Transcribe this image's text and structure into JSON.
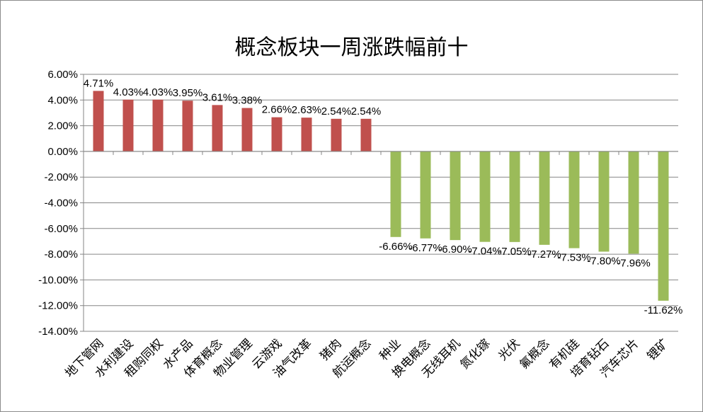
{
  "chart_data": {
    "type": "bar",
    "title": "概念板块一周涨跌幅前十",
    "xlabel": "",
    "ylabel": "",
    "ylim": [
      -14,
      6
    ],
    "ytick_step": 2,
    "ytick_labels": [
      "6.00%",
      "4.00%",
      "2.00%",
      "0.00%",
      "-2.00%",
      "-4.00%",
      "-6.00%",
      "-8.00%",
      "-10.00%",
      "-12.00%",
      "-14.00%"
    ],
    "grid": true,
    "legend": "none",
    "colors": {
      "positive": "#c0504d",
      "negative": "#9bbb59",
      "grid": "#868686",
      "axis": "#868686"
    },
    "categories": [
      "地下管网",
      "水利建设",
      "租购同权",
      "水产品",
      "体育概念",
      "物业管理",
      "云游戏",
      "油气改革",
      "猪肉",
      "航运概念",
      "种业",
      "换电概念",
      "无线耳机",
      "氮化镓",
      "光伏",
      "氟概念",
      "有机硅",
      "培育钻石",
      "汽车芯片",
      "锂矿"
    ],
    "values": [
      4.71,
      4.03,
      4.03,
      3.95,
      3.61,
      3.38,
      2.66,
      2.63,
      2.54,
      2.54,
      -6.66,
      -6.77,
      -6.9,
      -7.04,
      -7.05,
      -7.27,
      -7.53,
      -7.8,
      -7.96,
      -11.62
    ],
    "data_labels": [
      "4.71%",
      "4.03%",
      "4.03%",
      "3.95%",
      "3.61%",
      "3.38%",
      "2.66%",
      "2.63%",
      "2.54%",
      "2.54%",
      "-6.66%",
      "-6.77%",
      "-6.90%",
      "-7.04%",
      "-7.05%",
      "-7.27%",
      "-7.53%",
      "-7.80%",
      "-7.96%",
      "-11.62%"
    ]
  }
}
